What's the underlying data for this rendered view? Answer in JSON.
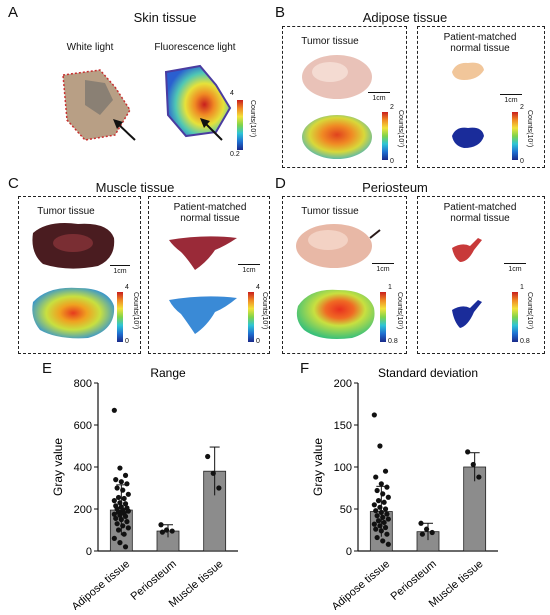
{
  "panels": {
    "A": {
      "label": "A",
      "title": "Skin tissue",
      "sub_left": "White light",
      "sub_right": "Fluorescence light",
      "cb_top": "4",
      "cb_bottom": "0.2",
      "cb_unit": "Counts(10⁷)"
    },
    "B": {
      "label": "B",
      "title": "Adipose tissue",
      "left": "Tumor tissue",
      "right": "Patient-matched normal tissue",
      "scale": "1cm",
      "cb_top": "2",
      "cb_bottom": "0",
      "cb_unit": "Counts(10⁷)"
    },
    "C": {
      "label": "C",
      "title": "Muscle tissue",
      "left": "Tumor tissue",
      "right": "Patient-matched normal tissue",
      "scale": "1cm",
      "cb_top": "4",
      "cb_bottom": "0",
      "cb_unit": "Counts(10⁷)"
    },
    "D": {
      "label": "D",
      "title": "Periosteum",
      "left": "Tumor tissue",
      "right": "Patient-matched normal tissue",
      "scale": "1cm",
      "cb_top": "1",
      "cb_bottom": "0.8",
      "cb_unit": "Counts(10⁷)"
    }
  },
  "chart_data": [
    {
      "panel": "E",
      "type": "bar",
      "title": "Range",
      "ylabel": "Gray value",
      "ylim": [
        0,
        800
      ],
      "yticks": [
        0,
        200,
        400,
        600,
        800
      ],
      "categories": [
        "Adipose tissue",
        "Periosteum",
        "Muscle tissue"
      ],
      "values": [
        195,
        95,
        380
      ],
      "errors": [
        120,
        30,
        115
      ],
      "points": [
        [
          670,
          395,
          360,
          340,
          330,
          320,
          300,
          290,
          270,
          255,
          250,
          240,
          230,
          225,
          215,
          210,
          205,
          200,
          195,
          190,
          185,
          180,
          175,
          170,
          165,
          155,
          150,
          140,
          130,
          120,
          110,
          100,
          80,
          60,
          40,
          20
        ],
        [
          125,
          100,
          95,
          90
        ],
        [
          450,
          370,
          300
        ]
      ]
    },
    {
      "panel": "F",
      "type": "bar",
      "title": "Standard deviation",
      "ylabel": "Gray value",
      "ylim": [
        0,
        200
      ],
      "yticks": [
        0,
        50,
        100,
        150,
        200
      ],
      "categories": [
        "Adipose tissue",
        "Periosteum",
        "Muscle tissue"
      ],
      "values": [
        47,
        23,
        100
      ],
      "errors": [
        30,
        10,
        17
      ],
      "points": [
        [
          162,
          125,
          95,
          88,
          80,
          76,
          72,
          68,
          64,
          60,
          58,
          55,
          52,
          50,
          48,
          46,
          44,
          42,
          40,
          38,
          36,
          34,
          32,
          30,
          28,
          26,
          24,
          20,
          16,
          12,
          8
        ],
        [
          33,
          26,
          22,
          20
        ],
        [
          118,
          103,
          88
        ]
      ]
    }
  ]
}
